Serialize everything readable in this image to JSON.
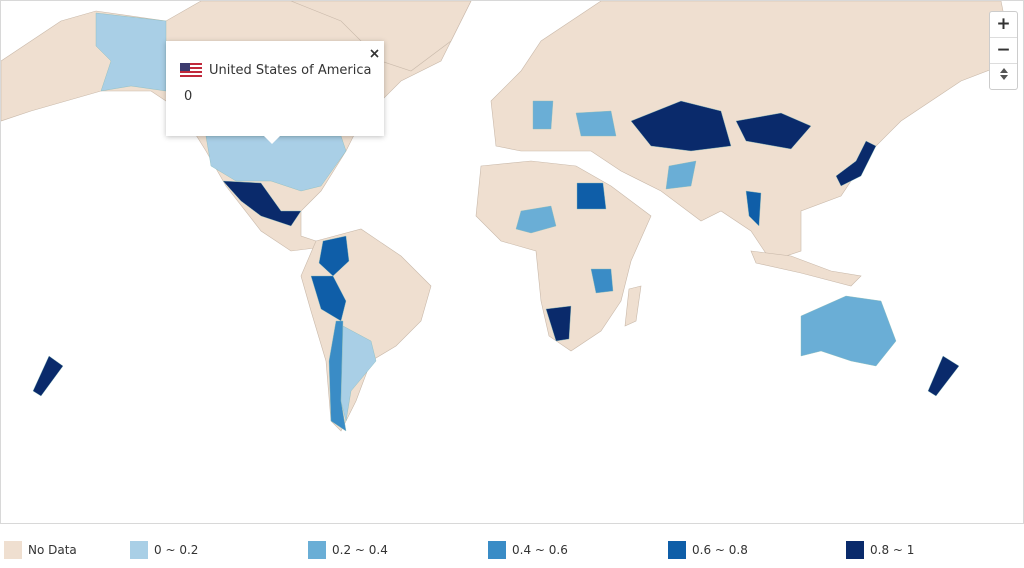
{
  "tooltip": {
    "country": "United States of America",
    "value": 0
  },
  "zoom_controls": [
    "+",
    "−"
  ],
  "legend": [
    {
      "label": "No Data",
      "color": "#efdfd0"
    },
    {
      "label": "0 ~ 0.2",
      "color": "#a9cfe6"
    },
    {
      "label": "0.2 ~ 0.4",
      "color": "#6aaed6"
    },
    {
      "label": "0.4 ~ 0.6",
      "color": "#3a8cc6"
    },
    {
      "label": "0.6 ~ 0.8",
      "color": "#0f5ea8"
    },
    {
      "label": "0.8 ~ 1",
      "color": "#0a2a6b"
    }
  ]
}
